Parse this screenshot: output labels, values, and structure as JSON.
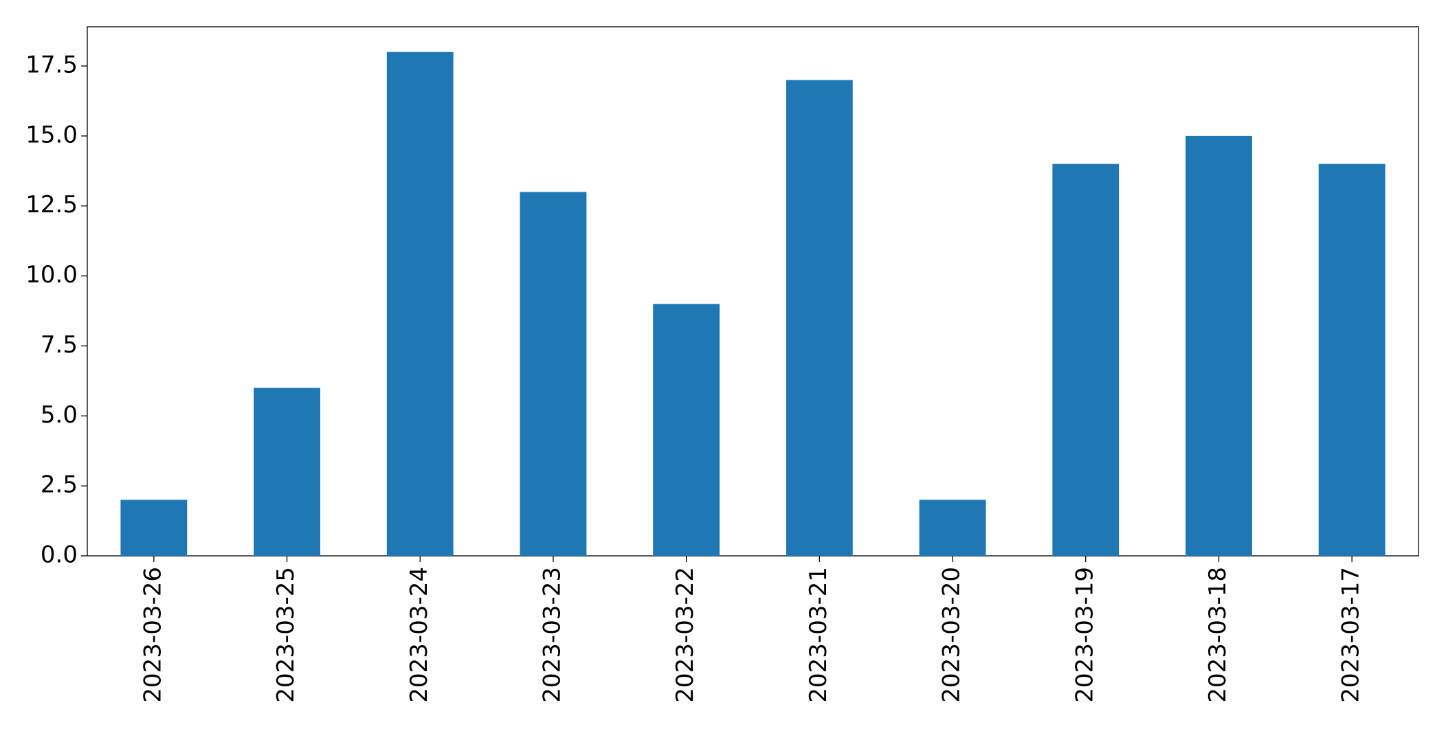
{
  "chart_data": {
    "type": "bar",
    "categories": [
      "2023-03-26",
      "2023-03-25",
      "2023-03-24",
      "2023-03-23",
      "2023-03-22",
      "2023-03-21",
      "2023-03-20",
      "2023-03-19",
      "2023-03-18",
      "2023-03-17"
    ],
    "values": [
      2,
      6,
      18,
      13,
      9,
      17,
      2,
      14,
      15,
      14
    ],
    "color": "#1f77b4",
    "ylim": [
      0,
      18.9
    ],
    "yticks": [
      {
        "value": 0,
        "label": "0.0"
      },
      2.5,
      {
        "value": 5,
        "label": "5.0"
      },
      7.5,
      {
        "value": 10,
        "label": "10.0"
      },
      12.5,
      {
        "value": 15,
        "label": "15.0"
      },
      17.5
    ],
    "grid": false
  }
}
